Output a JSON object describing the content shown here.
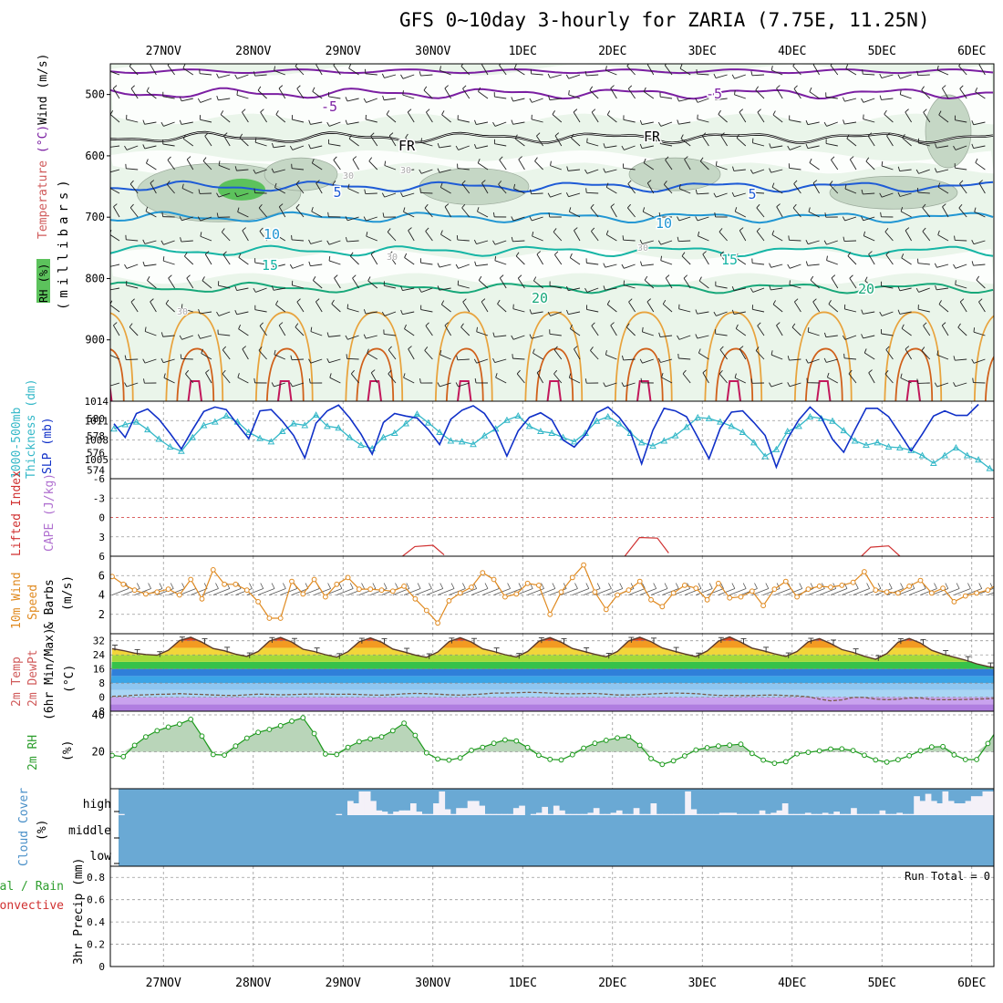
{
  "title": "GFS 0~10day 3-hourly for ZARIA (7.75E, 11.25N)",
  "dates": [
    "27NOV",
    "28NOV",
    "29NOV",
    "30NOV",
    "1DEC",
    "2DEC",
    "3DEC",
    "4DEC",
    "5DEC",
    "6DEC"
  ],
  "colors": {
    "grid": "#999999",
    "temp_contour": "#7b1fa2",
    "freezing_line": "#000000",
    "iso_blue": "#1e5bd6",
    "iso_mid_blue": "#2196d3",
    "iso_teal": "#16b5a5",
    "iso_green": "#18a87a",
    "orange": "#e8a33d",
    "dark_orange": "#d0601a",
    "magenta": "#c2185b",
    "slp": "#1030c8",
    "thickness": "#35b8c8",
    "lifted": "#d03030",
    "wind": "#e08a20",
    "rh": "#1d9a1d",
    "cloud": "#6aa9d4",
    "temp_label": "#d05a5a",
    "rh_label": "#2e9e2e",
    "cloud_label": "#4a90c8",
    "cape_label": "#b070d0"
  },
  "chart_data": [
    {
      "id": "upper-air",
      "type": "contour",
      "ylabel": "(millibars)",
      "side_labels": [
        "Temperature",
        "(°C)",
        "Wind",
        "(m/s)",
        "RH",
        "(%)"
      ],
      "yticks": [
        500,
        600,
        700,
        800,
        900
      ],
      "ylim": [
        1000,
        450
      ],
      "contour_labels": [
        "-5",
        "-5",
        "FR",
        "FR",
        "5",
        "5",
        "10",
        "10",
        "15",
        "15",
        "20",
        "20",
        "30",
        "30",
        "30",
        "30",
        "30"
      ],
      "isotherms": [
        {
          "label": "-5",
          "p_mb": 498
        },
        {
          "label": "FR",
          "p_mb": 570
        },
        {
          "label": "5",
          "p_mb": 650
        },
        {
          "label": "10",
          "p_mb": 700
        },
        {
          "label": "15",
          "p_mb": 755
        },
        {
          "label": "20",
          "p_mb": 815
        }
      ]
    },
    {
      "id": "slp-thickness",
      "type": "line",
      "left_labels": [
        "1000-500mb",
        "Thickness (dm)"
      ],
      "right_label": "SLP (mb)",
      "thickness_ticks": [
        580,
        578,
        576,
        574
      ],
      "slp_ticks": [
        1014,
        1011,
        1008,
        1005
      ],
      "thickness_ylim": [
        573,
        582
      ],
      "slp_ylim": [
        1002,
        1014
      ],
      "series": [
        {
          "name": "SLP (mb)",
          "values": [
            1010.5,
            1008.4,
            1012.1,
            1012.8,
            1011.2,
            1009.0,
            1006.6,
            1009.6,
            1012.4,
            1013.1,
            1012.7,
            1010.4,
            1008.2,
            1012.5,
            1012.7,
            1010.9,
            1008.7,
            1005.2,
            1010.6,
            1012.5,
            1013.4,
            1011.4,
            1008.9,
            1005.8,
            1010.7,
            1012.1,
            1011.7,
            1011.4,
            1009.6,
            1007.3,
            1011.2,
            1012.6,
            1013.3,
            1012.1,
            1009.5,
            1005.5,
            1009.4,
            1011.5,
            1012.2,
            1011.1,
            1008.0,
            1006.9,
            1008.8,
            1012.2,
            1013.1,
            1011.5,
            1009.2,
            1004.3,
            1009.5,
            1012.9,
            1012.5,
            1011.6,
            1008.4,
            1005.1,
            1009.8,
            1012.3,
            1012.5,
            1010.7,
            1008.7,
            1003.8,
            1008.2,
            1011.1,
            1013.1,
            1011.5,
            1008.1,
            1006.1,
            1009.6,
            1012.9,
            1012.9,
            1011.6,
            1009.0,
            1006.3,
            1008.9,
            1011.7,
            1012.5,
            1011.8,
            1011.8,
            1013.5
          ]
        },
        {
          "name": "Thickness (dm)",
          "values": [
            578.8,
            579.3,
            579.6,
            578.7,
            577.6,
            576.7,
            576.2,
            577.8,
            579.2,
            579.6,
            580.3,
            579.6,
            578.4,
            577.7,
            577.3,
            578.5,
            579.4,
            579.2,
            580.4,
            579.1,
            578.9,
            577.8,
            576.9,
            576.5,
            577.8,
            578.3,
            579.4,
            580.5,
            579.5,
            578.4,
            577.4,
            577.3,
            577.0,
            578.0,
            578.8,
            579.8,
            580.3,
            579.1,
            578.5,
            578.3,
            577.8,
            577.3,
            578.3,
            579.7,
            580.2,
            579.4,
            578.3,
            577.2,
            576.8,
            577.4,
            578.0,
            579.0,
            580.1,
            580.0,
            579.6,
            579.1,
            578.4,
            577.2,
            575.6,
            576.4,
            578.5,
            579.1,
            580.2,
            580.0,
            579.7,
            578.6,
            577.4,
            576.9,
            577.2,
            576.7,
            576.6,
            576.3,
            575.7,
            574.8,
            575.7,
            576.6,
            575.7,
            575.2,
            574.2,
            573.5
          ]
        }
      ]
    },
    {
      "id": "lifted-cape",
      "type": "line",
      "left_label": "Lifted Index",
      "right_label": "CAPE (J/kg)",
      "yticks": [
        "-6",
        "-3",
        "0",
        "3",
        "6"
      ],
      "ylim": [
        -6,
        6
      ],
      "series": [
        {
          "name": "Lifted Index",
          "values": [
            {
              "t": 12.5,
              "v": 6.4
            },
            {
              "t": 13.2,
              "v": 4.5
            },
            {
              "t": 14.0,
              "v": 4.3
            },
            {
              "t": 14.5,
              "v": 5.8
            },
            {
              "t": 22.5,
              "v": 6.2
            },
            {
              "t": 23.2,
              "v": 3.1
            },
            {
              "t": 24.0,
              "v": 3.2
            },
            {
              "t": 24.5,
              "v": 5.5
            },
            {
              "t": 33.0,
              "v": 6.3
            },
            {
              "t": 33.5,
              "v": 4.6
            },
            {
              "t": 34.3,
              "v": 4.4
            },
            {
              "t": 34.8,
              "v": 6.0
            }
          ]
        }
      ]
    },
    {
      "id": "wind10m",
      "type": "line",
      "left_label": "10m Wind Speed & Barbs",
      "unit_label": "(m/s)",
      "yticks": [
        "2",
        "4",
        "6"
      ],
      "ylim": [
        0,
        8
      ],
      "series": [
        {
          "name": "10m Wind Speed (m/s)",
          "values": [
            5.9,
            5.1,
            4.5,
            4.1,
            4.3,
            4.6,
            4.0,
            5.6,
            3.6,
            6.6,
            5.1,
            5.1,
            4.5,
            3.3,
            1.6,
            1.6,
            5.4,
            4.1,
            5.6,
            3.8,
            5.1,
            5.8,
            4.6,
            4.6,
            4.5,
            4.4,
            4.9,
            3.6,
            2.4,
            1.1,
            3.4,
            4.2,
            4.8,
            6.3,
            5.6,
            3.8,
            4.1,
            5.2,
            5.0,
            2.0,
            4.3,
            5.8,
            7.1,
            4.3,
            2.5,
            4.0,
            4.5,
            5.4,
            3.5,
            2.8,
            4.2,
            5.0,
            4.7,
            3.5,
            5.2,
            3.7,
            3.8,
            4.4,
            2.9,
            4.6,
            5.4,
            3.8,
            4.6,
            4.9,
            4.8,
            5.0,
            5.3,
            6.4,
            4.5,
            4.3,
            4.2,
            4.9,
            5.5,
            4.2,
            4.7,
            3.3,
            3.9,
            4.2,
            4.5,
            5.2
          ]
        }
      ]
    },
    {
      "id": "temp-dewpt",
      "type": "area",
      "left_labels": [
        "2m Temp",
        "2m DewPt",
        "(6hr Min/Max)"
      ],
      "unit_label": "(°C)",
      "yticks": [
        "32",
        "24",
        "16",
        "8",
        "0",
        "-8"
      ],
      "ylim": [
        -8,
        36
      ],
      "series": [
        {
          "name": "2m Temp (°C)",
          "values": [
            27.5,
            26.4,
            25.0,
            24.2,
            23.8,
            26.6,
            32.1,
            34.0,
            31.2,
            27.6,
            26.3,
            24.4,
            23.1,
            25.9,
            31.8,
            33.9,
            31.3,
            27.2,
            25.9,
            24.1,
            22.7,
            25.8,
            31.4,
            33.6,
            31.2,
            27.3,
            25.7,
            23.9,
            22.6,
            25.6,
            31.5,
            33.7,
            31.3,
            27.4,
            25.9,
            24.1,
            22.8,
            25.9,
            31.7,
            33.8,
            31.2,
            27.6,
            26.0,
            24.3,
            22.9,
            25.9,
            31.9,
            34.0,
            31.5,
            27.9,
            26.2,
            24.5,
            23.0,
            26.2,
            31.8,
            34.2,
            31.2,
            27.8,
            26.3,
            24.6,
            23.1,
            25.9,
            31.4,
            33.2,
            30.4,
            27.0,
            25.4,
            23.2,
            21.5,
            24.7,
            31.2,
            33.3,
            30.7,
            26.6,
            24.4,
            22.7,
            21.0,
            18.9,
            17.4,
            16.4
          ]
        },
        {
          "name": "2m DewPt (°C)",
          "values": [
            0.5,
            0.6,
            1.1,
            1.3,
            1.6,
            1.7,
            2.0,
            1.7,
            1.5,
            1.2,
            1.0,
            0.9,
            1.3,
            1.7,
            1.6,
            1.3,
            1.4,
            1.7,
            1.8,
            1.8,
            1.6,
            1.7,
            1.5,
            1.2,
            1.1,
            1.4,
            1.9,
            2.1,
            2.0,
            1.7,
            1.3,
            1.1,
            1.4,
            1.8,
            2.3,
            2.3,
            2.5,
            2.7,
            2.6,
            2.3,
            2.0,
            1.9,
            2.0,
            2.1,
            1.7,
            1.2,
            1.2,
            1.4,
            1.8,
            2.1,
            2.3,
            2.2,
            2.0,
            1.4,
            1.0,
            1.0,
            0.9,
            0.9,
            1.1,
            1.2,
            0.9,
            0.7,
            0.2,
            -1.1,
            -2.1,
            -1.6,
            -0.2,
            -0.2,
            -1.1,
            -1.5,
            -1.2,
            -0.5,
            -0.5,
            -1.3,
            -1.5,
            -1.4,
            -1.3,
            -1.1,
            -0.9,
            -0.5
          ]
        }
      ]
    },
    {
      "id": "rh2m",
      "type": "area",
      "left_label": "2m RH",
      "unit_label": "(%)",
      "yticks": [
        "40",
        "20"
      ],
      "ylim": [
        0,
        40
      ],
      "series": [
        {
          "name": "2m RH (%)",
          "values": [
            18.0,
            17.4,
            23.5,
            28.1,
            31.4,
            33.4,
            35.0,
            37.6,
            28.5,
            18.5,
            18.2,
            23.1,
            27.4,
            30.5,
            32.1,
            34.1,
            36.6,
            38.4,
            29.9,
            18.8,
            18.5,
            22.4,
            25.5,
            27.0,
            28.1,
            31.4,
            35.5,
            28.9,
            19.4,
            16.1,
            15.5,
            16.7,
            20.8,
            22.4,
            24.6,
            26.4,
            25.9,
            22.3,
            18.1,
            15.9,
            15.6,
            18.4,
            22.0,
            24.6,
            26.2,
            27.5,
            28.1,
            23.5,
            16.3,
            13.2,
            15.1,
            17.8,
            21.0,
            22.2,
            23.1,
            23.6,
            24.1,
            19.1,
            15.5,
            13.8,
            14.6,
            18.9,
            19.7,
            20.5,
            21.5,
            21.6,
            20.7,
            18.1,
            15.6,
            14.4,
            15.7,
            17.9,
            20.6,
            22.6,
            22.8,
            18.3,
            15.8,
            15.8,
            24.5,
            33.6
          ]
        }
      ]
    },
    {
      "id": "cloud-cover",
      "type": "bar",
      "left_label": "Cloud Cover",
      "unit_label": "(%)",
      "level_labels": [
        "high",
        "middle",
        "low"
      ],
      "series": [
        {
          "name": "High Cloud (%)",
          "values": [
            5,
            0,
            0,
            0,
            0,
            0,
            0,
            0,
            0,
            0,
            0,
            0,
            0,
            0,
            0,
            0,
            0,
            0,
            0,
            0,
            0,
            0,
            0,
            0,
            0,
            0,
            0,
            0,
            0,
            0,
            0,
            0,
            0,
            0,
            0,
            0,
            0,
            0,
            5,
            0,
            60,
            50,
            100,
            100,
            60,
            20,
            15,
            5,
            15,
            20,
            20,
            50,
            15,
            5,
            5,
            50,
            100,
            25,
            5,
            30,
            30,
            60,
            60,
            40,
            5,
            5,
            5,
            5,
            5,
            30,
            40,
            0,
            5,
            10,
            35,
            5,
            40,
            20,
            5,
            5,
            5,
            5,
            10,
            30,
            5,
            5,
            10,
            20,
            5,
            5,
            30,
            5,
            5,
            50,
            5,
            5,
            5,
            5,
            5,
            100,
            25,
            5,
            5,
            5,
            5,
            10,
            10,
            10,
            5,
            5,
            5,
            5,
            20,
            5,
            10,
            20,
            50,
            5,
            5,
            5,
            10,
            5,
            5,
            10,
            5,
            15,
            5,
            5,
            30,
            5,
            5,
            5,
            5,
            20,
            5,
            5,
            10,
            5,
            5,
            80,
            60,
            90,
            60,
            50,
            100,
            60,
            50,
            50,
            60,
            80,
            80,
            100,
            100
          ]
        },
        {
          "name": "Middle Cloud (%)",
          "values": [
            0
          ]
        },
        {
          "name": "Low Cloud (%)",
          "values": [
            0
          ]
        }
      ]
    },
    {
      "id": "precip",
      "type": "bar",
      "left_labels": [
        "Total / Rain",
        "Convective"
      ],
      "ylabel": "3hr Precip (mm)",
      "yticks": [
        "0.8",
        "0.6",
        "0.4",
        "0.2",
        "0"
      ],
      "ylim": [
        0,
        0.9
      ],
      "run_total_label": "Run Total = 0",
      "series": [
        {
          "name": "3hr Precip (mm)",
          "values": [
            0
          ]
        }
      ]
    }
  ]
}
